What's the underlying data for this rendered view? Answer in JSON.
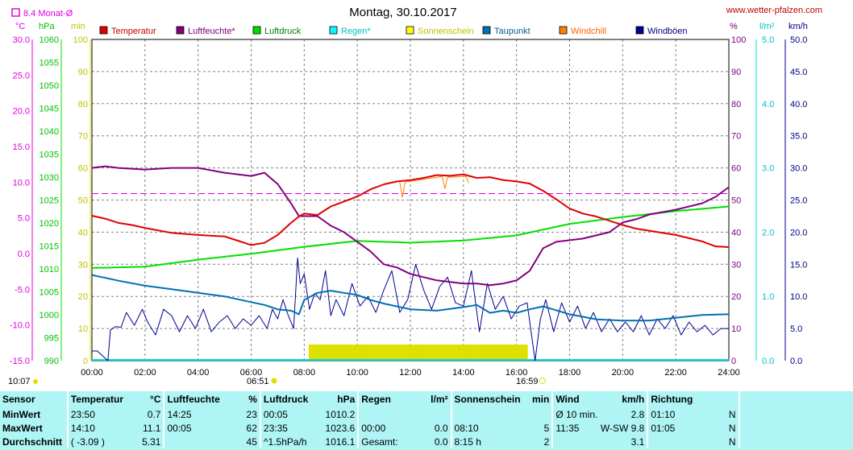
{
  "header": {
    "title": "Montag, 30.10.2017",
    "url": "www.wetter-pfalzen.com",
    "avg_label": "8.4 Monat-Ø"
  },
  "colors": {
    "temp": "#e00000",
    "hum": "#800080",
    "press": "#00e000",
    "rain": "#00e0e0",
    "sun": "#e0e000",
    "dew": "#0070b0",
    "chill": "#ff8000",
    "gust": "#000090",
    "avg": "#e000e0"
  },
  "units": {
    "temp": "°C",
    "press": "hPa",
    "sun": "min",
    "hum": "%",
    "rain": "l/m²",
    "wind": "km/h"
  },
  "legend": [
    {
      "name": "Temperatur",
      "color": "#e00000",
      "text_color": "#c00000"
    },
    {
      "name": "Luftfeuchte*",
      "color": "#800080",
      "text_color": "#800080"
    },
    {
      "name": "Luftdruck",
      "color": "#00e000",
      "text_color": "#008000"
    },
    {
      "name": "Regen*",
      "color": "#00ffff",
      "text_color": "#00c0c0"
    },
    {
      "name": "Sonnenschein",
      "color": "#ffff00",
      "text_color": "#c0c000"
    },
    {
      "name": "Taupunkt",
      "color": "#0070b0",
      "text_color": "#006090"
    },
    {
      "name": "Windchill",
      "color": "#ff8000",
      "text_color": "#ff6000"
    },
    {
      "name": "Windböen",
      "color": "#000090",
      "text_color": "#000080"
    }
  ],
  "axes": {
    "temp": [
      "30.0",
      "25.0",
      "20.0",
      "15.0",
      "10.0",
      "5.0",
      "0.0",
      "-5.0",
      "-10.0",
      "-15.0"
    ],
    "press": [
      "1060",
      "1055",
      "1050",
      "1045",
      "1040",
      "1035",
      "1030",
      "1025",
      "1020",
      "1015",
      "1010",
      "1005",
      "1000",
      "995",
      "990"
    ],
    "sun": [
      "100",
      "90",
      "80",
      "70",
      "60",
      "50",
      "40",
      "30",
      "20",
      "10",
      "0"
    ],
    "hum": [
      "100",
      "90",
      "80",
      "70",
      "60",
      "50",
      "40",
      "30",
      "20",
      "10",
      "0"
    ],
    "rain": [
      "5.0",
      "4.0",
      "3.0",
      "2.0",
      "1.0",
      "0.0"
    ],
    "wind": [
      "50.0",
      "45.0",
      "40.0",
      "35.0",
      "30.0",
      "25.0",
      "20.0",
      "15.0",
      "10.0",
      "5.0",
      "0.0"
    ],
    "x": [
      "00:00",
      "02:00",
      "04:00",
      "06:00",
      "08:00",
      "10:00",
      "12:00",
      "14:00",
      "16:00",
      "18:00",
      "20:00",
      "22:00",
      "24:00"
    ]
  },
  "sun_times": {
    "sunrise": "06:51",
    "sunset": "16:59",
    "moonrise": "10:07"
  },
  "chart_data": {
    "type": "line",
    "x_range": [
      "00:00",
      "24:00"
    ],
    "monthly_avg_temp": 8.4,
    "series": [
      {
        "name": "Temperatur",
        "unit": "°C",
        "x": [
          0,
          0.5,
          1,
          1.5,
          2,
          3,
          4,
          5,
          5.5,
          6,
          6.5,
          7,
          7.5,
          7.8,
          8,
          8.5,
          9,
          9.5,
          10,
          10.5,
          11,
          11.5,
          12,
          12.5,
          13,
          13.5,
          14,
          14.5,
          15,
          15.5,
          16,
          16.5,
          17,
          17.5,
          18,
          18.5,
          19,
          20,
          20.5,
          21,
          22,
          23,
          23.5,
          24
        ],
        "y": [
          5.3,
          4.9,
          4.3,
          4.0,
          3.6,
          2.9,
          2.6,
          2.4,
          1.8,
          1.2,
          1.5,
          2.6,
          4.3,
          5.2,
          5.6,
          5.4,
          6.6,
          7.3,
          8.0,
          9.0,
          9.7,
          10.1,
          10.3,
          10.6,
          11.0,
          10.9,
          11.1,
          10.6,
          10.7,
          10.3,
          10.1,
          9.8,
          8.8,
          7.6,
          6.3,
          5.6,
          5.2,
          4.0,
          3.5,
          3.2,
          2.6,
          1.7,
          1.0,
          0.9
        ]
      },
      {
        "name": "Luftfeuchte",
        "unit": "%",
        "x": [
          0,
          0.5,
          1,
          2,
          3,
          4,
          5,
          6,
          6.5,
          7,
          7.5,
          7.8,
          8,
          8.5,
          9,
          9.5,
          10,
          10.5,
          11,
          11.5,
          12,
          12.5,
          13,
          13.5,
          14,
          14.5,
          15,
          15.5,
          16,
          16.5,
          17,
          17.5,
          18,
          18.5,
          19,
          19.5,
          20,
          20.5,
          21,
          22,
          23,
          23.5,
          24
        ],
        "y": [
          60,
          60.5,
          60,
          59.5,
          60,
          60,
          58.5,
          57.5,
          58.5,
          55,
          49,
          45,
          45,
          45,
          42,
          40,
          37,
          34,
          30,
          29,
          27,
          26,
          25,
          24.5,
          24,
          24,
          23.5,
          24,
          25,
          28,
          35,
          37,
          37.5,
          38,
          39,
          40,
          43,
          44,
          45.5,
          47,
          49,
          51,
          54
        ]
      },
      {
        "name": "Luftdruck",
        "unit": "hPa",
        "x": [
          0,
          2,
          4,
          6,
          8,
          10,
          12,
          14,
          16,
          18,
          20,
          22,
          24
        ],
        "y": [
          1010.2,
          1010.5,
          1012.0,
          1013.3,
          1014.8,
          1016.1,
          1015.7,
          1016.2,
          1017.3,
          1019.8,
          1021.3,
          1022.6,
          1023.6
        ]
      },
      {
        "name": "Taupunkt",
        "unit": "°C",
        "x": [
          0,
          1,
          2,
          3,
          4,
          5,
          6,
          6.5,
          7,
          7.5,
          7.8,
          8,
          8.5,
          9,
          9.5,
          10,
          10.5,
          11,
          12,
          13,
          14,
          14.5,
          15,
          15.5,
          16,
          16.5,
          17,
          18,
          19,
          20,
          21,
          22,
          23,
          24
        ],
        "y": [
          -3.0,
          -3.8,
          -4.5,
          -5.0,
          -5.5,
          -6.0,
          -6.8,
          -7.2,
          -7.8,
          -8.0,
          -8.5,
          -6.5,
          -5.5,
          -5.2,
          -5.5,
          -5.8,
          -6.5,
          -7.0,
          -7.8,
          -8.0,
          -7.5,
          -7.2,
          -8.3,
          -8.0,
          -8.3,
          -7.8,
          -7.4,
          -8.5,
          -9.2,
          -9.4,
          -9.4,
          -9.0,
          -8.6,
          -8.5
        ]
      },
      {
        "name": "Windböen",
        "unit": "km/h",
        "x": [
          0,
          0.2,
          0.6,
          0.7,
          0.9,
          1.1,
          1.3,
          1.6,
          1.9,
          2.1,
          2.4,
          2.7,
          3.0,
          3.3,
          3.6,
          3.9,
          4.2,
          4.5,
          4.8,
          5.1,
          5.4,
          5.7,
          6.0,
          6.3,
          6.6,
          6.8,
          7.0,
          7.2,
          7.4,
          7.6,
          7.75,
          7.85,
          8.0,
          8.2,
          8.4,
          8.6,
          8.8,
          9.0,
          9.2,
          9.5,
          9.8,
          10.1,
          10.4,
          10.7,
          11.0,
          11.3,
          11.6,
          11.9,
          12.2,
          12.5,
          12.8,
          13.1,
          13.4,
          13.7,
          14.0,
          14.3,
          14.6,
          14.9,
          15.2,
          15.5,
          15.8,
          16.1,
          16.4,
          16.7,
          16.9,
          17.1,
          17.4,
          17.7,
          18.0,
          18.3,
          18.6,
          18.9,
          19.2,
          19.5,
          19.8,
          20.1,
          20.4,
          20.7,
          21.0,
          21.3,
          21.6,
          21.9,
          22.2,
          22.5,
          22.8,
          23.1,
          23.4,
          23.7,
          24
        ],
        "y": [
          1.5,
          1.5,
          0,
          4.8,
          5.3,
          5.2,
          7.5,
          5.5,
          8.0,
          6.0,
          4.0,
          8.0,
          7.0,
          4.5,
          7.0,
          5.0,
          8.0,
          4.5,
          6.0,
          7.0,
          5.0,
          6.5,
          5.5,
          7.0,
          5.0,
          8.0,
          6.5,
          9.5,
          7.0,
          5.0,
          16.0,
          12.0,
          13.5,
          8.0,
          10.5,
          9.5,
          14.0,
          7.0,
          9.5,
          7.0,
          12.0,
          8.5,
          10.0,
          7.5,
          11.0,
          14.0,
          7.5,
          9.5,
          15.0,
          11.0,
          8.0,
          11.5,
          13.0,
          9.0,
          8.5,
          14.0,
          4.5,
          12.0,
          8.0,
          10.0,
          6.5,
          8.5,
          9.0,
          0,
          6.5,
          9.5,
          4.5,
          9.0,
          6.0,
          8.5,
          5.0,
          7.5,
          4.5,
          6.5,
          4.5,
          6.0,
          4.5,
          7.0,
          4.0,
          6.5,
          5.0,
          7.0,
          4.0,
          6.0,
          4.5,
          5.5,
          4.0,
          5.0,
          5.0
        ]
      },
      {
        "name": "Windchill",
        "unit": "°C",
        "x": [
          11.6,
          11.7,
          11.8,
          13.2,
          13.3,
          13.4,
          14.1,
          14.2
        ],
        "y": [
          10.0,
          7.9,
          10.0,
          10.8,
          9.1,
          10.7,
          10.8,
          9.9
        ]
      },
      {
        "name": "Sonnenschein",
        "unit": "min",
        "start": "08:10",
        "end": "16:20",
        "value": 5
      }
    ],
    "ylim": {
      "temp": [
        -15,
        30
      ],
      "press": [
        990,
        1060
      ],
      "sun": [
        0,
        100
      ],
      "hum": [
        0,
        100
      ],
      "rain": [
        0,
        5
      ],
      "wind": [
        0,
        50
      ]
    }
  },
  "stats": {
    "headers": [
      "Sensor",
      "Temperatur",
      "°C",
      "Luftfeuchte",
      "%",
      "Luftdruck",
      "hPa",
      "Regen",
      "l/m²",
      "Sonnenschein",
      "min",
      "Wind",
      "km/h",
      "Richtung"
    ],
    "rows": [
      {
        "label": "MinWert",
        "temp_time": "23:50",
        "temp_val": "0.7",
        "hum_time": "14:25",
        "hum_val": "23",
        "press_time": "00:05",
        "press_val": "1010.2",
        "rain_time": "",
        "rain_val": "",
        "sun_time": "",
        "sun_val": "",
        "wind_time": "Ø 10 min.",
        "wind_dir": "",
        "wind_val": "2.8",
        "dir_time": "01:10",
        "dir_val": "N"
      },
      {
        "label": "MaxWert",
        "temp_time": "14:10",
        "temp_val": "11.1",
        "hum_time": "00:05",
        "hum_val": "62",
        "press_time": "23:35",
        "press_val": "1023.6",
        "rain_time": "00:00",
        "rain_val": "0.0",
        "sun_time": "08:10",
        "sun_val": "5",
        "wind_time": "11:35",
        "wind_dir": "W-SW",
        "wind_val": "9.8",
        "dir_time": "01:05",
        "dir_val": "N"
      },
      {
        "label": "Durchschnitt",
        "temp_time": "( -3.09 )",
        "temp_val": "5.31",
        "hum_time": "",
        "hum_val": "45",
        "press_time": "^1.5hPa/h",
        "press_val": "1016.1",
        "rain_time": "Gesamt:",
        "rain_val": "0.0",
        "sun_time": "8:15 h",
        "sun_val": "2",
        "wind_time": "",
        "wind_dir": "",
        "wind_val": "3.1",
        "dir_time": "",
        "dir_val": "N"
      }
    ]
  }
}
